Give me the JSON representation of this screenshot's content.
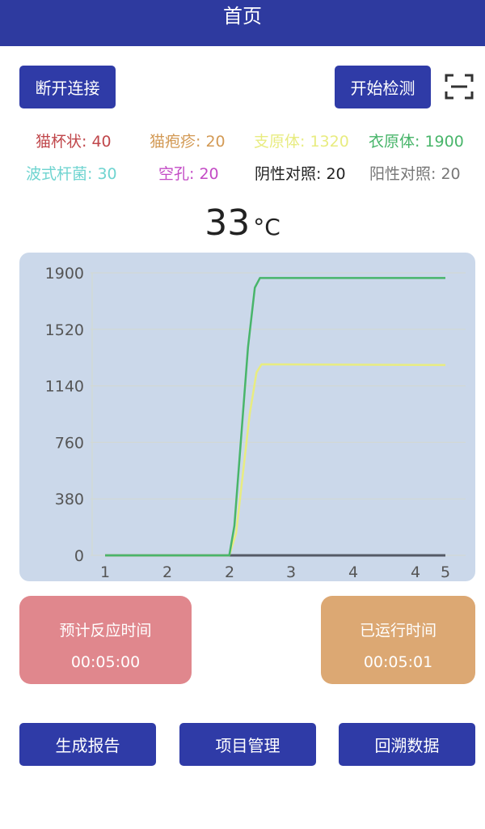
{
  "header": {
    "title": "首页"
  },
  "toolbar": {
    "disconnect_label": "断开连接",
    "start_label": "开始检测",
    "scan_icon": "scan-icon"
  },
  "legend": [
    {
      "label": "猫杯状: 40",
      "color": "#c0474b"
    },
    {
      "label": "猫疱疹: 20",
      "color": "#d39a55"
    },
    {
      "label": "支原体: 1320",
      "color": "#e8ec80"
    },
    {
      "label": "衣原体: 1900",
      "color": "#48b56a"
    },
    {
      "label": "波式杆菌: 30",
      "color": "#6fd4d0"
    },
    {
      "label": "空孔: 20",
      "color": "#c34bc5"
    },
    {
      "label": "阴性对照: 20",
      "color": "#222222"
    },
    {
      "label": "阳性对照: 20",
      "color": "#777777"
    }
  ],
  "temperature": {
    "value": "33",
    "unit": "°C"
  },
  "chart_data": {
    "type": "line",
    "x_tick_labels": [
      "1",
      "2",
      "2",
      "3",
      "4",
      "4",
      "5"
    ],
    "y_tick_labels": [
      "0",
      "380",
      "760",
      "1140",
      "1520",
      "1900"
    ],
    "xlim": [
      1,
      5
    ],
    "ylim": [
      0,
      1900
    ],
    "grid": true,
    "series": [
      {
        "color": "#48b56a",
        "x": [
          1,
          2.46,
          2.52,
          2.6,
          2.68,
          2.76,
          2.82,
          5
        ],
        "y": [
          0,
          0,
          200,
          800,
          1400,
          1800,
          1865,
          1865
        ]
      },
      {
        "color": "#e8ec80",
        "x": [
          1,
          2.46,
          2.54,
          2.62,
          2.7,
          2.78,
          2.84,
          5
        ],
        "y": [
          0,
          0,
          150,
          550,
          950,
          1230,
          1285,
          1280
        ]
      },
      {
        "color": "#555a66",
        "x": [
          1,
          5
        ],
        "y": [
          0,
          0
        ]
      }
    ]
  },
  "cards": {
    "estimated": {
      "title": "预计反应时间",
      "value": "00:05:00",
      "color": "#e0878d"
    },
    "elapsed": {
      "title": "已运行时间",
      "value": "00:05:01",
      "color": "#dca873"
    }
  },
  "bottom": {
    "report": "生成报告",
    "projects": "项目管理",
    "history": "回溯数据"
  }
}
